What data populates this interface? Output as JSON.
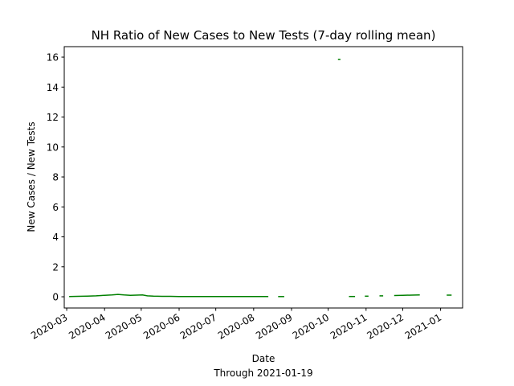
{
  "chart_data": {
    "type": "line",
    "title": "NH Ratio of New Cases to New Tests (7-day rolling mean)",
    "xlabel": "Date",
    "subcaption": "Through 2021-01-19",
    "ylabel": "New Cases / New Tests",
    "xlim": [
      "2020-02-28",
      "2021-01-19"
    ],
    "ylim": [
      -0.75,
      16.7
    ],
    "x_ticks": [
      "2020-03",
      "2020-04",
      "2020-05",
      "2020-06",
      "2020-07",
      "2020-08",
      "2020-09",
      "2020-10",
      "2020-11",
      "2020-12",
      "2021-01"
    ],
    "y_ticks": [
      0,
      2,
      4,
      6,
      8,
      10,
      12,
      14,
      16
    ],
    "grid": false,
    "legend": "none",
    "line_color": "#008000",
    "series": [
      {
        "segments": [
          {
            "x": [
              "2020-03-03",
              "2020-03-10",
              "2020-03-18",
              "2020-03-25",
              "2020-04-01",
              "2020-04-07",
              "2020-04-12",
              "2020-04-17",
              "2020-04-22",
              "2020-04-27",
              "2020-05-02",
              "2020-05-06",
              "2020-05-11",
              "2020-05-18",
              "2020-05-25",
              "2020-06-01",
              "2020-06-10",
              "2020-06-20",
              "2020-07-01",
              "2020-07-15",
              "2020-08-01",
              "2020-08-13"
            ],
            "y": [
              0.02,
              0.03,
              0.04,
              0.06,
              0.1,
              0.12,
              0.16,
              0.12,
              0.1,
              0.11,
              0.12,
              0.06,
              0.04,
              0.03,
              0.03,
              0.02,
              0.01,
              0.01,
              0.01,
              0.01,
              0.01,
              0.01
            ]
          },
          {
            "x": [
              "2020-08-21",
              "2020-08-26"
            ],
            "y": [
              0.01,
              0.01
            ]
          },
          {
            "x": [
              "2020-10-09",
              "2020-10-11"
            ],
            "y": [
              15.85,
              15.85
            ]
          },
          {
            "x": [
              "2020-10-18",
              "2020-10-23"
            ],
            "y": [
              0.02,
              0.02
            ]
          },
          {
            "x": [
              "2020-10-31",
              "2020-11-03"
            ],
            "y": [
              0.04,
              0.04
            ]
          },
          {
            "x": [
              "2020-11-12",
              "2020-11-15"
            ],
            "y": [
              0.06,
              0.06
            ]
          },
          {
            "x": [
              "2020-11-24",
              "2020-12-01",
              "2020-12-08",
              "2020-12-15"
            ],
            "y": [
              0.08,
              0.1,
              0.11,
              0.12
            ]
          },
          {
            "x": [
              "2021-01-06",
              "2021-01-10"
            ],
            "y": [
              0.11,
              0.11
            ]
          }
        ]
      }
    ]
  }
}
